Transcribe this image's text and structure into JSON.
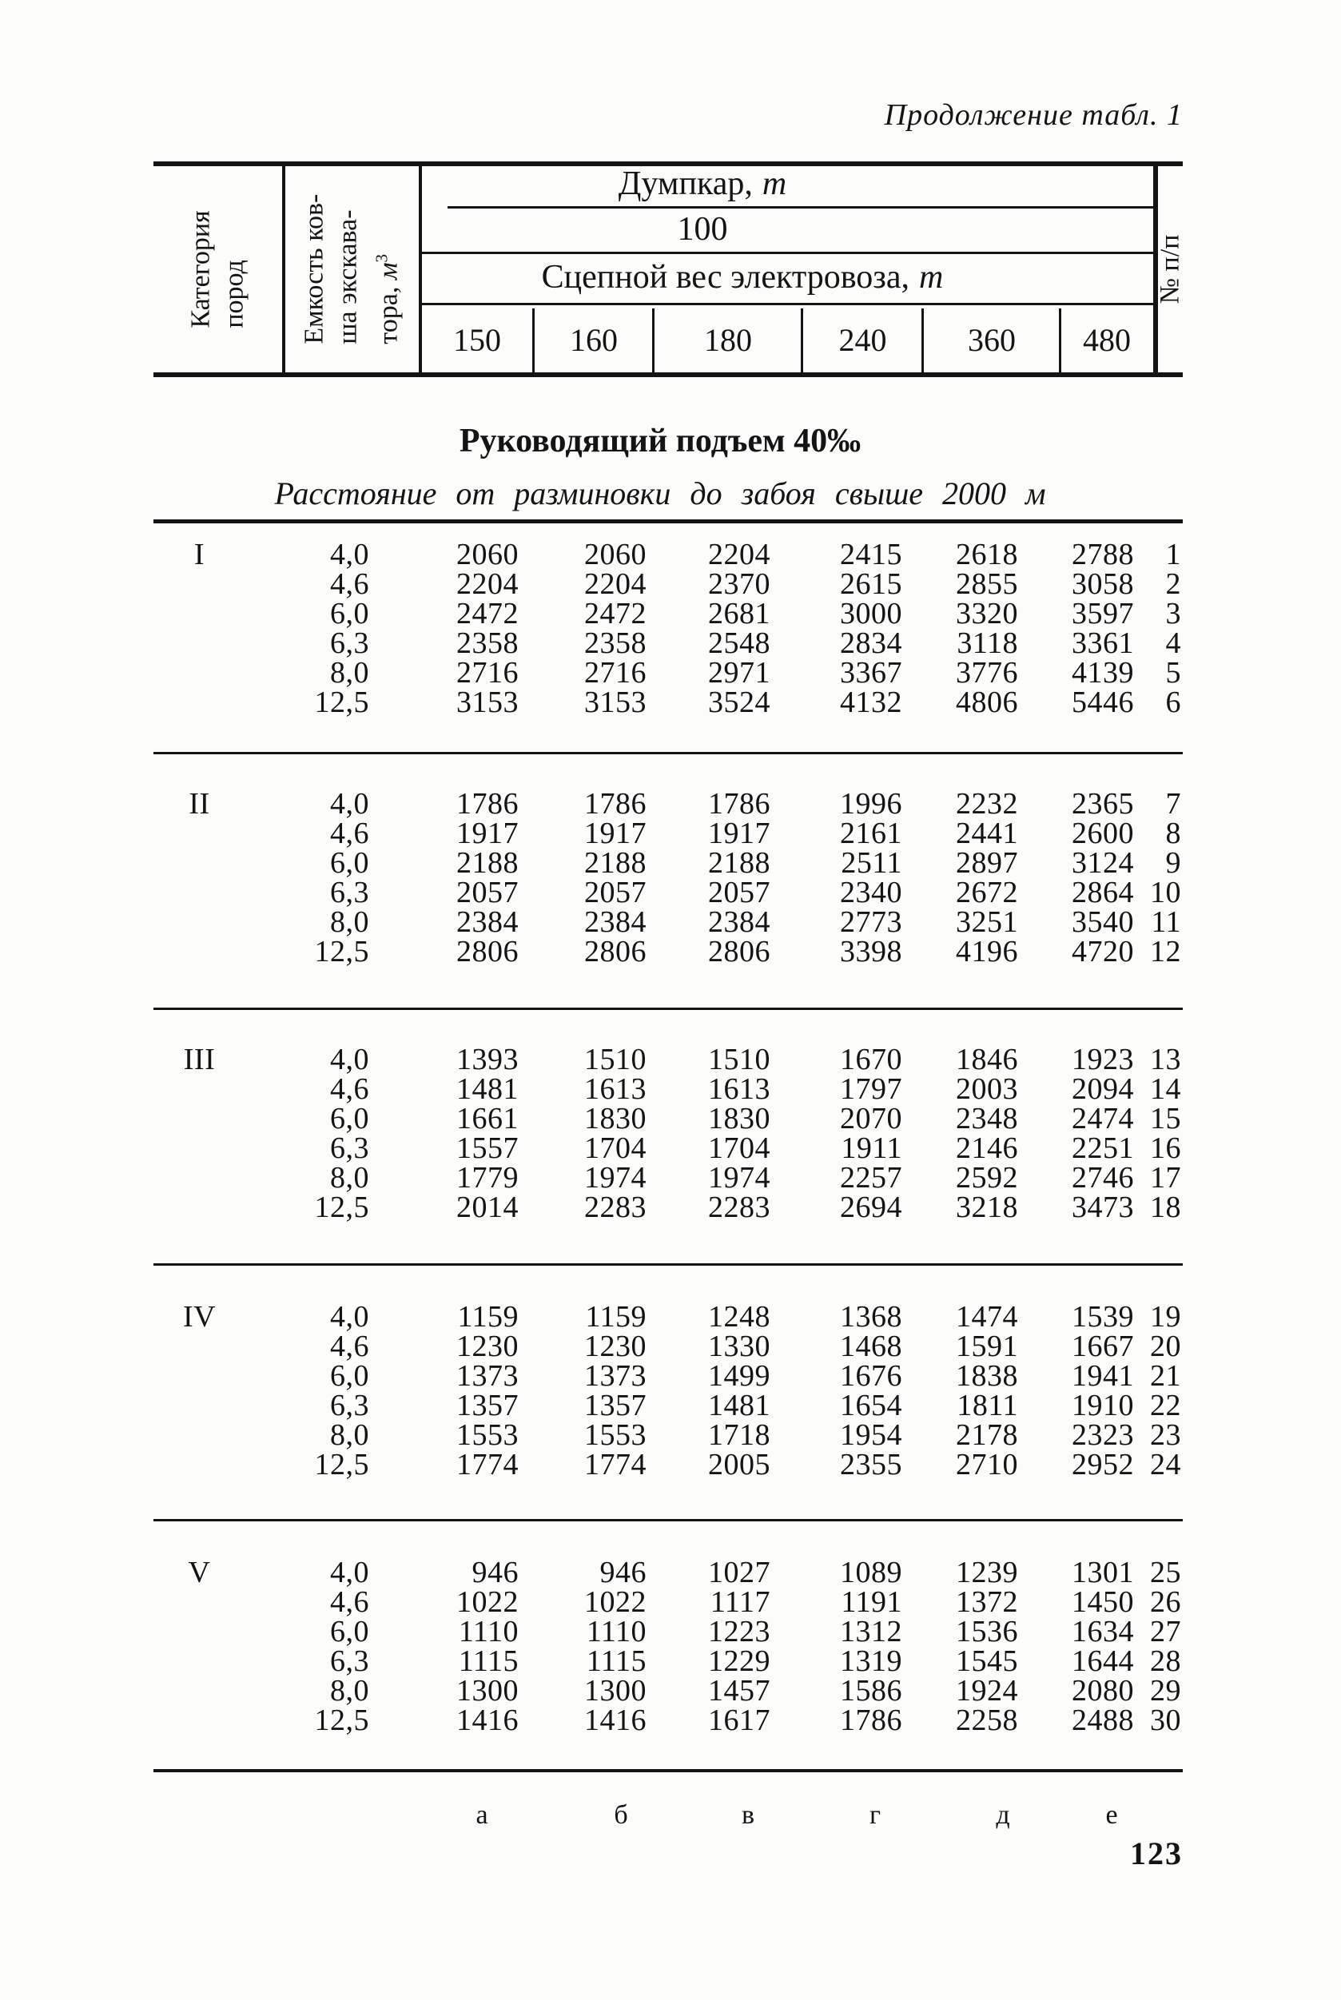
{
  "page": {
    "continuation": "Продолжение табл. 1",
    "page_number": "123"
  },
  "table_header": {
    "col_category_lines": [
      "Категория",
      "пород"
    ],
    "col_bucket_lines": [
      "Емкость ков-",
      "ша экскава-",
      "тора, "
    ],
    "col_bucket_unit": "м",
    "col_bucket_unit_sup": "3",
    "dumpcar_label": "Думпкар,",
    "dumpcar_unit": "т",
    "dumpcar_capacity": "100",
    "coupling_label": "Сцепной вес электровоза,",
    "coupling_unit": "т",
    "weights": [
      "150",
      "160",
      "180",
      "240",
      "360",
      "480"
    ],
    "row_number_label": "№ п/п"
  },
  "section": {
    "title": "Руководящий подъем 40‰",
    "subtitle": "Расстояние от разминовки до забоя свыше 2000 м"
  },
  "groups": [
    {
      "category": "I",
      "rows": [
        [
          "4,0",
          "2060",
          "2060",
          "2204",
          "2415",
          "2618",
          "2788",
          "1"
        ],
        [
          "4,6",
          "2204",
          "2204",
          "2370",
          "2615",
          "2855",
          "3058",
          "2"
        ],
        [
          "6,0",
          "2472",
          "2472",
          "2681",
          "3000",
          "3320",
          "3597",
          "3"
        ],
        [
          "6,3",
          "2358",
          "2358",
          "2548",
          "2834",
          "3118",
          "3361",
          "4"
        ],
        [
          "8,0",
          "2716",
          "2716",
          "2971",
          "3367",
          "3776",
          "4139",
          "5"
        ],
        [
          "12,5",
          "3153",
          "3153",
          "3524",
          "4132",
          "4806",
          "5446",
          "6"
        ]
      ]
    },
    {
      "category": "II",
      "rows": [
        [
          "4,0",
          "1786",
          "1786",
          "1786",
          "1996",
          "2232",
          "2365",
          "7"
        ],
        [
          "4,6",
          "1917",
          "1917",
          "1917",
          "2161",
          "2441",
          "2600",
          "8"
        ],
        [
          "6,0",
          "2188",
          "2188",
          "2188",
          "2511",
          "2897",
          "3124",
          "9"
        ],
        [
          "6,3",
          "2057",
          "2057",
          "2057",
          "2340",
          "2672",
          "2864",
          "10"
        ],
        [
          "8,0",
          "2384",
          "2384",
          "2384",
          "2773",
          "3251",
          "3540",
          "11"
        ],
        [
          "12,5",
          "2806",
          "2806",
          "2806",
          "3398",
          "4196",
          "4720",
          "12"
        ]
      ]
    },
    {
      "category": "III",
      "rows": [
        [
          "4,0",
          "1393",
          "1510",
          "1510",
          "1670",
          "1846",
          "1923",
          "13"
        ],
        [
          "4,6",
          "1481",
          "1613",
          "1613",
          "1797",
          "2003",
          "2094",
          "14"
        ],
        [
          "6,0",
          "1661",
          "1830",
          "1830",
          "2070",
          "2348",
          "2474",
          "15"
        ],
        [
          "6,3",
          "1557",
          "1704",
          "1704",
          "1911",
          "2146",
          "2251",
          "16"
        ],
        [
          "8,0",
          "1779",
          "1974",
          "1974",
          "2257",
          "2592",
          "2746",
          "17"
        ],
        [
          "12,5",
          "2014",
          "2283",
          "2283",
          "2694",
          "3218",
          "3473",
          "18"
        ]
      ]
    },
    {
      "category": "IV",
      "rows": [
        [
          "4,0",
          "1159",
          "1159",
          "1248",
          "1368",
          "1474",
          "1539",
          "19"
        ],
        [
          "4,6",
          "1230",
          "1230",
          "1330",
          "1468",
          "1591",
          "1667",
          "20"
        ],
        [
          "6,0",
          "1373",
          "1373",
          "1499",
          "1676",
          "1838",
          "1941",
          "21"
        ],
        [
          "6,3",
          "1357",
          "1357",
          "1481",
          "1654",
          "1811",
          "1910",
          "22"
        ],
        [
          "8,0",
          "1553",
          "1553",
          "1718",
          "1954",
          "2178",
          "2323",
          "23"
        ],
        [
          "12,5",
          "1774",
          "1774",
          "2005",
          "2355",
          "2710",
          "2952",
          "24"
        ]
      ]
    },
    {
      "category": "V",
      "rows": [
        [
          "4,0",
          "946",
          "946",
          "1027",
          "1089",
          "1239",
          "1301",
          "25"
        ],
        [
          "4,6",
          "1022",
          "1022",
          "1117",
          "1191",
          "1372",
          "1450",
          "26"
        ],
        [
          "6,0",
          "1110",
          "1110",
          "1223",
          "1312",
          "1536",
          "1634",
          "27"
        ],
        [
          "6,3",
          "1115",
          "1115",
          "1229",
          "1319",
          "1545",
          "1644",
          "28"
        ],
        [
          "8,0",
          "1300",
          "1300",
          "1457",
          "1586",
          "1924",
          "2080",
          "29"
        ],
        [
          "12,5",
          "1416",
          "1416",
          "1617",
          "1786",
          "2258",
          "2488",
          "30"
        ]
      ]
    }
  ],
  "footer": {
    "column_letters": [
      "а",
      "б",
      "в",
      "г",
      "д",
      "е"
    ]
  }
}
